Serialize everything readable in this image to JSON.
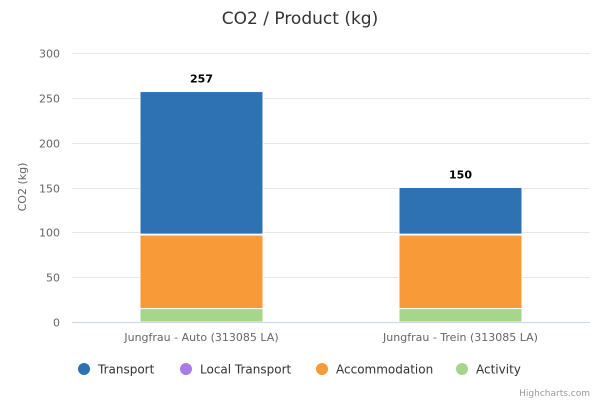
{
  "chart_data": {
    "type": "bar",
    "stacked": true,
    "title": "CO2 / Product (kg)",
    "xlabel": "",
    "ylabel": "CO2 (kg)",
    "ylim": [
      0,
      300
    ],
    "yticks": [
      0,
      50,
      100,
      150,
      200,
      250,
      300
    ],
    "grid": true,
    "legend_position": "bottom",
    "categories": [
      "Jungfrau - Auto (313085 LA)",
      "Jungfrau - Trein (313085 LA)"
    ],
    "series": [
      {
        "name": "Activity",
        "color": "#a5d68c",
        "values": [
          15,
          15
        ]
      },
      {
        "name": "Accommodation",
        "color": "#f89a38",
        "values": [
          82,
          82
        ]
      },
      {
        "name": "Local Transport",
        "color": "#a87be8",
        "values": [
          1,
          1
        ]
      },
      {
        "name": "Transport",
        "color": "#2e72b4",
        "values": [
          159,
          52
        ]
      }
    ],
    "totals": [
      257,
      150
    ],
    "legend_order": [
      "Transport",
      "Local Transport",
      "Accommodation",
      "Activity"
    ]
  },
  "credits": "Highcharts.com"
}
